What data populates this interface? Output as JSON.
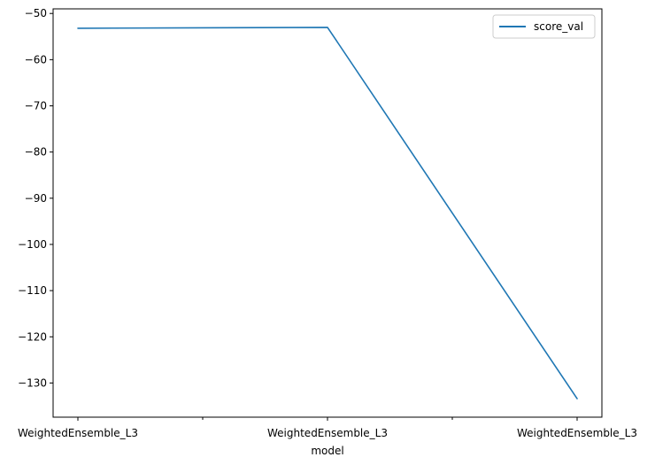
{
  "chart_data": {
    "type": "line",
    "categories": [
      "WeightedEnsemble_L3",
      "WeightedEnsemble_L3",
      "WeightedEnsemble_L3"
    ],
    "series": [
      {
        "name": "score_val",
        "values": [
          -53.2,
          -53.0,
          -133.4
        ],
        "color": "#1f77b4"
      }
    ],
    "xlabel": "model",
    "ylabel": "",
    "yticks": [
      -50,
      -60,
      -70,
      -80,
      -90,
      -100,
      -110,
      -120,
      -130
    ],
    "ylim": [
      -137.4,
      -49.0
    ],
    "grid": false,
    "legend": "top-right"
  }
}
